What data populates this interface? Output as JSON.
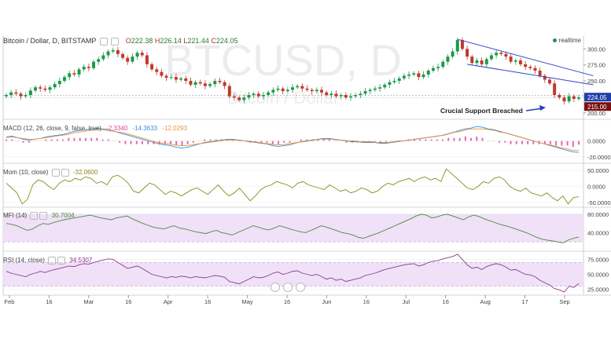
{
  "header": {
    "symbol": "Bitcoin / Dollar, D, BITSTAMP",
    "open": "222.38",
    "high": "226.14",
    "low": "221.44",
    "close": "224.05",
    "realtime_label": "realtime"
  },
  "watermark": {
    "ticker": "BTCUSD, D",
    "name": "Bitcoin / Dollar"
  },
  "annotation": "Crucial Support Breached",
  "price_tags": {
    "last": "224.05",
    "support": "215.00"
  },
  "indicators": {
    "macd": {
      "label": "MACD (12, 26, close, 9, false, true)",
      "v1": "-2.3340",
      "v2": "-14.3633",
      "v3": "-12.0293"
    },
    "mom": {
      "label": "Mom (10, close)",
      "v1": "-32.0600"
    },
    "mfi": {
      "label": "MFI (14)",
      "v1": "30.7004"
    },
    "rsi": {
      "label": "RSI (14, close)",
      "v1": "34.5307"
    }
  },
  "colors": {
    "up": "#1a9a4a",
    "down": "#c0392b",
    "trendline": "#3344cc",
    "macd_line": "#3a8fd8",
    "signal_line": "#e8943a",
    "hist": "#e040a0",
    "mom_line": "#8a8a1a",
    "mfi_line": "#4a8a3a",
    "rsi_line": "#8a3a8a",
    "band": "#f0e0f8",
    "arrow": "#1f3fbf"
  },
  "chart_data": [
    {
      "type": "candlestick",
      "title": "Bitcoin / Dollar, D, BITSTAMP",
      "x_ticks": [
        "Feb",
        "16",
        "Mar",
        "16",
        "Apr",
        "16",
        "May",
        "16",
        "Jun",
        "16",
        "Jul",
        "16",
        "Aug",
        "17",
        "Sep"
      ],
      "y_ticks": [
        300.0,
        275.0,
        250.0,
        225.0,
        200.0
      ],
      "ylim": [
        190,
        320
      ],
      "close_values": [
        228,
        232,
        230,
        226,
        228,
        235,
        240,
        238,
        236,
        240,
        245,
        250,
        256,
        262,
        260,
        268,
        272,
        270,
        280,
        284,
        290,
        296,
        298,
        292,
        286,
        280,
        288,
        294,
        290,
        276,
        268,
        264,
        258,
        255,
        256,
        252,
        254,
        250,
        244,
        248,
        246,
        242,
        245,
        250,
        248,
        242,
        226,
        224,
        220,
        224,
        228,
        230,
        226,
        228,
        232,
        236,
        238,
        234,
        236,
        240,
        242,
        238,
        236,
        234,
        236,
        232,
        228,
        230,
        226,
        228,
        224,
        226,
        228,
        230,
        234,
        236,
        238,
        240,
        244,
        248,
        250,
        254,
        258,
        260,
        262,
        256,
        260,
        266,
        270,
        272,
        280,
        288,
        296,
        314,
        300,
        288,
        278,
        282,
        276,
        284,
        290,
        294,
        292,
        288,
        280,
        282,
        276,
        272,
        270,
        266,
        258,
        252,
        246,
        228,
        224,
        218,
        226,
        222,
        224.05
      ],
      "trendlines": [
        {
          "from": {
            "index": 93,
            "value": 315
          },
          "to": {
            "index": 121,
            "value": 258
          }
        },
        {
          "from": {
            "index": 95,
            "value": 276
          },
          "to": {
            "index": 121,
            "value": 244
          }
        }
      ],
      "support_level": 215.0,
      "last_close": 224.05
    },
    {
      "type": "line",
      "title": "MACD (12, 26, close, 9, false, true)",
      "y_ticks": [
        0.0,
        -20.0
      ],
      "ylim": [
        -28,
        24
      ],
      "series": [
        {
          "name": "MACD",
          "values": [
            5,
            6,
            4,
            2,
            1,
            2,
            3,
            5,
            6,
            7,
            8,
            10,
            12,
            13,
            14,
            15,
            16,
            15,
            14,
            12,
            10,
            8,
            6,
            4,
            2,
            0,
            -2,
            -4,
            -5,
            -6,
            -8,
            -9,
            -8,
            -6,
            -4,
            -2,
            -1,
            0,
            1,
            2,
            2,
            1,
            0,
            -1,
            -2,
            -3,
            -4,
            -6,
            -7,
            -6,
            -5,
            -3,
            -1,
            0,
            1,
            2,
            3,
            3,
            2,
            1,
            0,
            -1,
            -1,
            -2,
            -2,
            -2,
            -3,
            -3,
            -2,
            -1,
            0,
            1,
            2,
            3,
            4,
            5,
            6,
            7,
            9,
            11,
            13,
            15,
            16,
            18,
            17,
            15,
            14,
            12,
            10,
            8,
            6,
            4,
            2,
            0,
            -2,
            -4,
            -6,
            -8,
            -10,
            -12,
            -14,
            -14.3633
          ]
        },
        {
          "name": "Signal",
          "values": [
            4,
            5,
            4,
            3,
            2,
            2,
            3,
            4,
            5,
            6,
            7,
            8,
            10,
            11,
            12,
            13,
            14,
            14,
            13,
            12,
            11,
            10,
            8,
            6,
            4,
            2,
            0,
            -2,
            -3,
            -4,
            -5,
            -6,
            -6,
            -5,
            -4,
            -3,
            -2,
            -1,
            0,
            1,
            1,
            1,
            0,
            0,
            -1,
            -2,
            -3,
            -4,
            -5,
            -5,
            -4,
            -3,
            -2,
            -1,
            0,
            1,
            2,
            2,
            2,
            1,
            1,
            0,
            0,
            -1,
            -1,
            -1,
            -2,
            -2,
            -2,
            -1,
            0,
            0,
            1,
            2,
            3,
            4,
            5,
            6,
            7,
            9,
            11,
            12,
            14,
            15,
            15,
            15,
            14,
            13,
            11,
            10,
            8,
            6,
            4,
            2,
            0,
            -2,
            -4,
            -5,
            -7,
            -9,
            -10,
            -12,
            -12.0293
          ]
        }
      ]
    },
    {
      "type": "line",
      "title": "Mom (10, close)",
      "y_ticks": [
        50.0,
        0.0,
        -50.0
      ],
      "ylim": [
        -65,
        65
      ],
      "series": [
        {
          "name": "Mom",
          "values": [
            10,
            -5,
            -20,
            -55,
            -40,
            5,
            20,
            15,
            0,
            -10,
            10,
            20,
            15,
            25,
            20,
            30,
            25,
            10,
            15,
            5,
            30,
            35,
            25,
            10,
            -15,
            -20,
            -5,
            10,
            5,
            -10,
            -25,
            -15,
            -20,
            -30,
            -20,
            -10,
            -5,
            -15,
            -25,
            -10,
            5,
            -15,
            -30,
            -20,
            -5,
            -25,
            -45,
            -30,
            -10,
            0,
            5,
            15,
            10,
            5,
            -5,
            10,
            15,
            5,
            0,
            -5,
            -10,
            5,
            -5,
            -15,
            -10,
            -20,
            -15,
            -5,
            -10,
            -20,
            -15,
            0,
            10,
            5,
            15,
            20,
            25,
            15,
            25,
            30,
            20,
            25,
            15,
            55,
            40,
            25,
            10,
            -5,
            -10,
            0,
            15,
            10,
            25,
            30,
            20,
            0,
            -10,
            -15,
            -5,
            -20,
            -25,
            -30,
            -20,
            -35,
            -45,
            -30,
            -55,
            -35,
            -32.06
          ]
        }
      ]
    },
    {
      "type": "line",
      "title": "MFI (14)",
      "y_ticks": [
        80.0,
        40.0
      ],
      "ylim": [
        0,
        90
      ],
      "bands": [
        20,
        80
      ],
      "series": [
        {
          "name": "MFI",
          "values": [
            60,
            58,
            55,
            50,
            45,
            48,
            55,
            60,
            58,
            62,
            65,
            68,
            70,
            72,
            74,
            76,
            78,
            75,
            72,
            70,
            68,
            72,
            74,
            76,
            70,
            65,
            60,
            56,
            52,
            50,
            48,
            52,
            55,
            50,
            48,
            45,
            42,
            40,
            38,
            42,
            45,
            40,
            38,
            35,
            40,
            45,
            50,
            55,
            52,
            48,
            46,
            50,
            55,
            52,
            48,
            45,
            42,
            40,
            45,
            50,
            55,
            52,
            48,
            44,
            40,
            38,
            35,
            30,
            28,
            32,
            36,
            40,
            45,
            50,
            55,
            60,
            65,
            70,
            76,
            80,
            78,
            72,
            74,
            78,
            80,
            76,
            72,
            68,
            74,
            78,
            75,
            70,
            66,
            62,
            58,
            55,
            52,
            48,
            44,
            40,
            35,
            30,
            26,
            24,
            22,
            20,
            18,
            24,
            28,
            30.7004
          ]
        }
      ]
    },
    {
      "type": "line",
      "title": "RSI (14, close)",
      "y_ticks": [
        75.0,
        50.0,
        25.0
      ],
      "ylim": [
        15,
        85
      ],
      "bands": [
        30,
        70
      ],
      "series": [
        {
          "name": "RSI",
          "values": [
            55,
            52,
            50,
            48,
            46,
            50,
            52,
            55,
            53,
            56,
            58,
            60,
            62,
            64,
            63,
            66,
            68,
            67,
            70,
            72,
            74,
            76,
            75,
            70,
            65,
            60,
            62,
            64,
            60,
            55,
            50,
            48,
            46,
            44,
            46,
            45,
            47,
            46,
            44,
            46,
            45,
            44,
            46,
            48,
            47,
            45,
            38,
            36,
            34,
            38,
            42,
            46,
            44,
            45,
            48,
            52,
            54,
            50,
            52,
            55,
            56,
            52,
            50,
            48,
            50,
            46,
            42,
            44,
            40,
            42,
            38,
            40,
            42,
            44,
            48,
            50,
            52,
            55,
            58,
            60,
            62,
            64,
            66,
            67,
            68,
            64,
            66,
            70,
            72,
            73,
            76,
            78,
            80,
            84,
            75,
            66,
            60,
            62,
            58,
            63,
            66,
            68,
            66,
            62,
            57,
            58,
            54,
            50,
            49,
            46,
            40,
            36,
            32,
            26,
            24,
            20,
            30,
            28,
            34.5307
          ]
        }
      ]
    }
  ]
}
